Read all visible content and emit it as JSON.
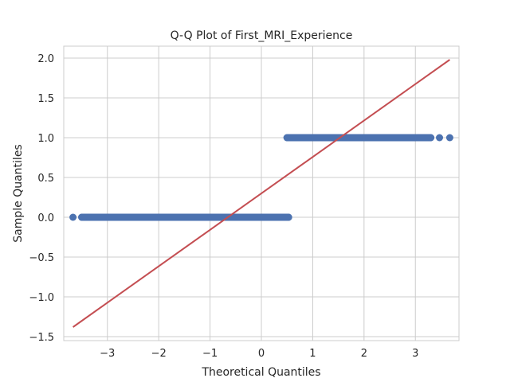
{
  "chart_data": {
    "type": "scatter",
    "title": "Q-Q Plot of First_MRI_Experience",
    "xlabel": "Theoretical Quantiles",
    "ylabel": "Sample Quantiles",
    "xlim": [
      -3.85,
      3.85
    ],
    "ylim": [
      -1.55,
      2.15
    ],
    "x_ticks": [
      -3,
      -2,
      -1,
      0,
      1,
      2,
      3
    ],
    "x_tick_labels": [
      "−3",
      "−2",
      "−1",
      "0",
      "1",
      "2",
      "3"
    ],
    "y_ticks": [
      -1.5,
      -1.0,
      -0.5,
      0.0,
      0.5,
      1.0,
      1.5,
      2.0
    ],
    "y_tick_labels": [
      "−1.5",
      "−1.0",
      "−0.5",
      "0.0",
      "0.5",
      "1.0",
      "1.5",
      "2.0"
    ],
    "grid": true,
    "series": [
      {
        "kind": "points",
        "color": "#4c72b0",
        "segments": [
          {
            "x_start": -3.5,
            "x_end": 0.53,
            "y": 0.0
          },
          {
            "x_start": 0.5,
            "x_end": 3.3,
            "y": 1.0
          }
        ],
        "outliers": [
          {
            "x": -3.67,
            "y": 0.0
          },
          {
            "x": -3.47,
            "y": 0.0
          },
          {
            "x": -3.35,
            "y": 0.0
          },
          {
            "x": 3.47,
            "y": 1.0
          },
          {
            "x": 3.67,
            "y": 1.0
          }
        ]
      },
      {
        "kind": "line",
        "color": "#c44e52",
        "points": [
          {
            "x": -3.67,
            "y": -1.38
          },
          {
            "x": 3.67,
            "y": 1.98
          }
        ]
      }
    ]
  }
}
